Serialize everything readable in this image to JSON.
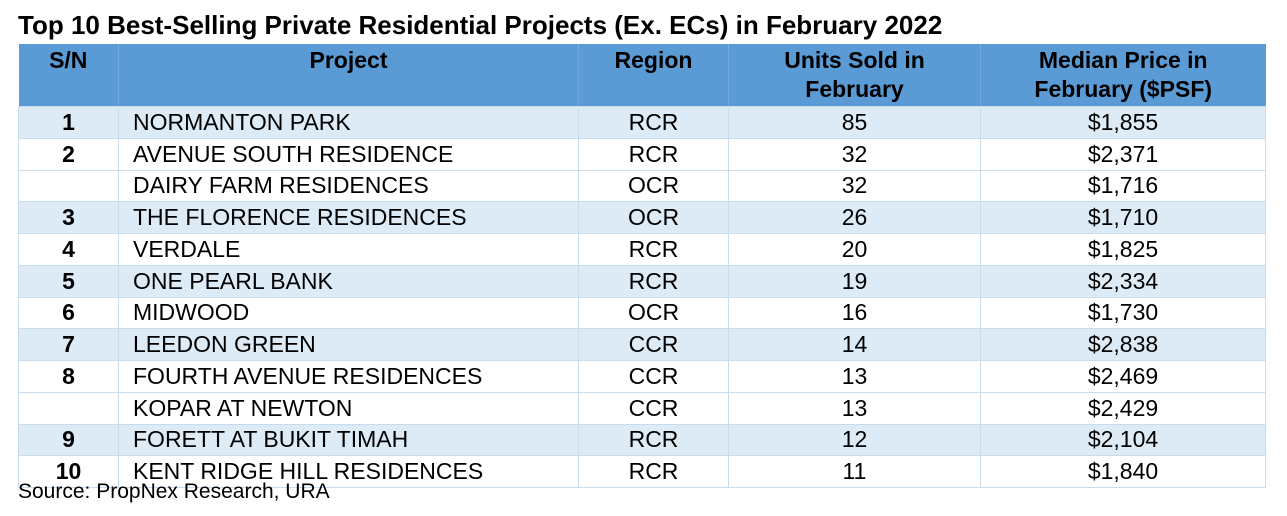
{
  "title": "Top 10 Best-Selling Private Residential Projects (Ex. ECs) in February 2022",
  "table": {
    "headers": {
      "sn": "S/N",
      "project": "Project",
      "region": "Region",
      "units_line1": "Units Sold in",
      "units_line2": "February",
      "price_line1": "Median Price in",
      "price_line2": "February ($PSF)"
    },
    "rows": [
      {
        "sn": "1",
        "project": "NORMANTON PARK",
        "region": "RCR",
        "units": "85",
        "price": "$1,855"
      },
      {
        "sn": "2",
        "project": "AVENUE SOUTH RESIDENCE",
        "region": "RCR",
        "units": "32",
        "price": "$2,371"
      },
      {
        "sn": "",
        "project": "DAIRY FARM RESIDENCES",
        "region": "OCR",
        "units": "32",
        "price": "$1,716"
      },
      {
        "sn": "3",
        "project": "THE FLORENCE RESIDENCES",
        "region": "OCR",
        "units": "26",
        "price": "$1,710"
      },
      {
        "sn": "4",
        "project": "VERDALE",
        "region": "RCR",
        "units": "20",
        "price": "$1,825"
      },
      {
        "sn": "5",
        "project": "ONE PEARL BANK",
        "region": "RCR",
        "units": "19",
        "price": "$2,334"
      },
      {
        "sn": "6",
        "project": "MIDWOOD",
        "region": "OCR",
        "units": "16",
        "price": "$1,730"
      },
      {
        "sn": "7",
        "project": "LEEDON GREEN",
        "region": "CCR",
        "units": "14",
        "price": "$2,838"
      },
      {
        "sn": "8",
        "project": "FOURTH AVENUE RESIDENCES",
        "region": "CCR",
        "units": "13",
        "price": "$2,469"
      },
      {
        "sn": "",
        "project": "KOPAR AT NEWTON",
        "region": "CCR",
        "units": "13",
        "price": "$2,429"
      },
      {
        "sn": "9",
        "project": "FORETT AT BUKIT TIMAH",
        "region": "RCR",
        "units": "12",
        "price": "$2,104"
      },
      {
        "sn": "10",
        "project": "KENT RIDGE HILL RESIDENCES",
        "region": "RCR",
        "units": "11",
        "price": "$1,840"
      }
    ]
  },
  "source": "Source: PropNex Research, URA",
  "colors": {
    "header_fill": "#5b9bd5",
    "band_fill": "#ddebf7",
    "plain_fill": "#ffffff"
  }
}
